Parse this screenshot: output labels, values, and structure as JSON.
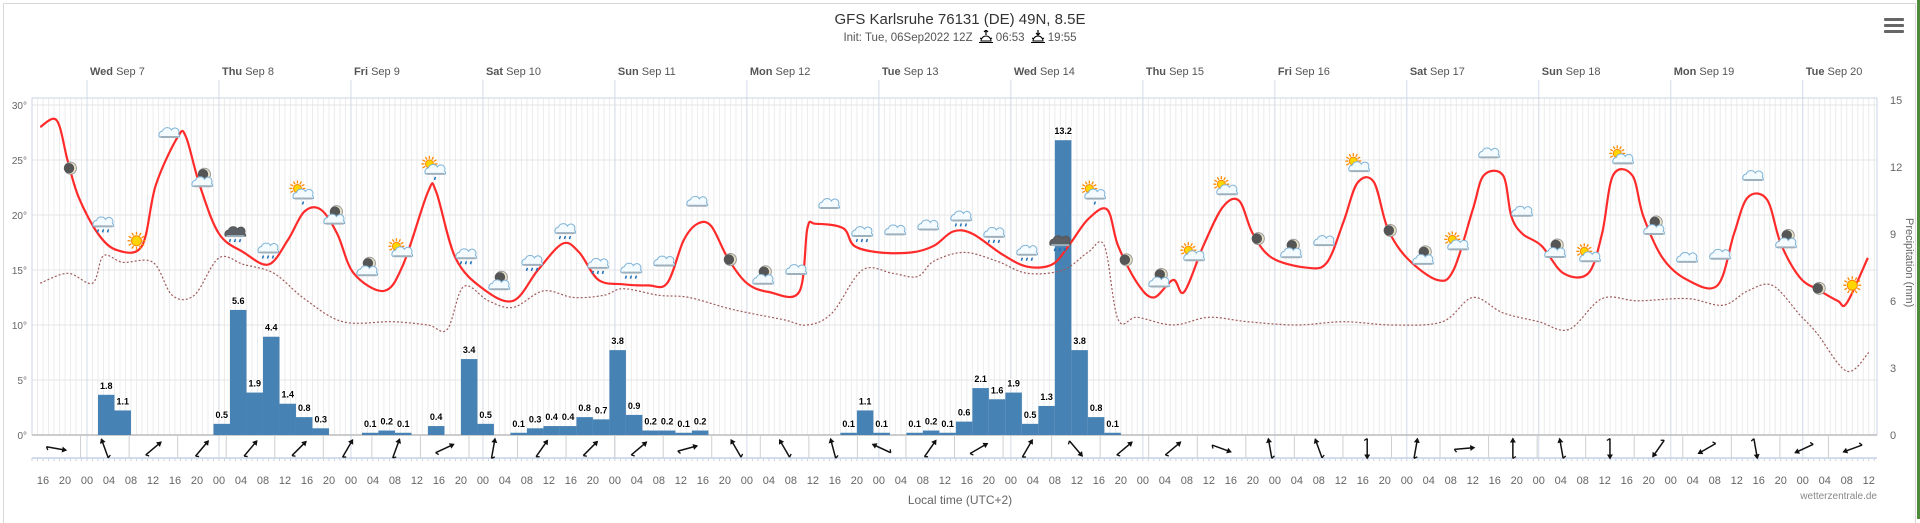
{
  "header": {
    "title": "GFS Karlsruhe 76131 (DE) 49N, 8.5E",
    "init": "Init: Tue, 06Sep2022 12Z",
    "sunrise": "06:53",
    "sunset": "19:55",
    "menu_icon": "hamburger-menu-icon"
  },
  "credit": "wetterzentrale.de",
  "colors": {
    "temperature": "#ff2b2b",
    "dewpoint": "#a05a5a",
    "precipitation": "#4682b4",
    "frame_accent": "#4f8a3a"
  },
  "chart_data": {
    "type": "line+bar",
    "xlabel": "Local time (UTC+2)",
    "xlim": [
      "2022-09-06 14:00",
      "2022-09-20 13:30"
    ],
    "day_labels": [
      {
        "day": "Wed",
        "date": "Sep 7"
      },
      {
        "day": "Thu",
        "date": "Sep 8"
      },
      {
        "day": "Fri",
        "date": "Sep 9"
      },
      {
        "day": "Sat",
        "date": "Sep 10"
      },
      {
        "day": "Sun",
        "date": "Sep 11"
      },
      {
        "day": "Mon",
        "date": "Sep 12"
      },
      {
        "day": "Tue",
        "date": "Sep 13"
      },
      {
        "day": "Wed",
        "date": "Sep 14"
      },
      {
        "day": "Thu",
        "date": "Sep 15"
      },
      {
        "day": "Fri",
        "date": "Sep 16"
      },
      {
        "day": "Sat",
        "date": "Sep 17"
      },
      {
        "day": "Sun",
        "date": "Sep 18"
      },
      {
        "day": "Mon",
        "date": "Sep 19"
      },
      {
        "day": "Tue",
        "date": "Sep 20"
      }
    ],
    "hour_tick_interval_h": 4,
    "y_left": {
      "ticks": [
        "0°",
        "5°",
        "10°",
        "15°",
        "20°",
        "25°",
        "30°"
      ],
      "ylim": [
        0,
        30
      ]
    },
    "y_right": {
      "label": "Precipitation (mm)",
      "ticks": [
        "0",
        "3",
        "6",
        "9",
        "12",
        "15"
      ],
      "ylim": [
        0,
        15
      ]
    },
    "grid": true,
    "series": [
      {
        "kind": "line",
        "color": "#ff2b2b",
        "style": "solid",
        "points": [
          [
            "09-06 15:30",
            28.0
          ],
          [
            "09-06 18:30",
            28.6
          ],
          [
            "09-06 20:30",
            24.9
          ],
          [
            "09-06 22:30",
            21.6
          ],
          [
            "09-07 02:00",
            18.3
          ],
          [
            "09-07 05:30",
            16.8
          ],
          [
            "09-07 10:00",
            17.2
          ],
          [
            "09-07 12:30",
            22.7
          ],
          [
            "09-07 16:30",
            27.1
          ],
          [
            "09-07 18:00",
            27.1
          ],
          [
            "09-07 20:30",
            22.7
          ],
          [
            "09-08 00:00",
            18.3
          ],
          [
            "09-08 04:30",
            16.6
          ],
          [
            "09-08 09:00",
            15.5
          ],
          [
            "09-08 12:30",
            17.7
          ],
          [
            "09-08 15:30",
            20.3
          ],
          [
            "09-08 18:30",
            20.5
          ],
          [
            "09-08 21:30",
            18.3
          ],
          [
            "09-09 00:30",
            14.7
          ],
          [
            "09-09 06:00",
            13.1
          ],
          [
            "09-09 09:30",
            15.5
          ],
          [
            "09-09 14:00",
            22.1
          ],
          [
            "09-09 15:30",
            22.1
          ],
          [
            "09-09 19:00",
            16.1
          ],
          [
            "09-10 00:00",
            13.3
          ],
          [
            "09-10 05:30",
            12.2
          ],
          [
            "09-10 10:00",
            15.0
          ],
          [
            "09-10 14:30",
            17.4
          ],
          [
            "09-10 17:30",
            16.6
          ],
          [
            "09-10 21:00",
            14.1
          ],
          [
            "09-11 01:30",
            13.7
          ],
          [
            "09-11 06:00",
            13.6
          ],
          [
            "09-11 09:30",
            13.8
          ],
          [
            "09-11 12:30",
            17.7
          ],
          [
            "09-11 15:00",
            19.2
          ],
          [
            "09-11 17:30",
            19.0
          ],
          [
            "09-11 20:30",
            16.1
          ],
          [
            "09-12 00:00",
            13.8
          ],
          [
            "09-12 04:00",
            13.0
          ],
          [
            "09-12 09:30",
            13.0
          ],
          [
            "09-12 11:00",
            18.8
          ],
          [
            "09-12 12:30",
            19.2
          ],
          [
            "09-12 17:30",
            18.8
          ],
          [
            "09-12 19:30",
            17.2
          ],
          [
            "09-13 00:00",
            16.6
          ],
          [
            "09-13 06:00",
            16.6
          ],
          [
            "09-13 10:00",
            17.2
          ],
          [
            "09-13 13:30",
            18.5
          ],
          [
            "09-13 17:00",
            18.3
          ],
          [
            "09-13 22:30",
            16.4
          ],
          [
            "09-14 03:00",
            15.3
          ],
          [
            "09-14 07:30",
            15.5
          ],
          [
            "09-14 10:30",
            17.2
          ],
          [
            "09-14 14:00",
            19.6
          ],
          [
            "09-14 17:30",
            20.5
          ],
          [
            "09-14 19:30",
            17.2
          ],
          [
            "09-14 23:00",
            13.8
          ],
          [
            "09-15 02:00",
            12.5
          ],
          [
            "09-15 05:30",
            14.1
          ],
          [
            "09-15 07:30",
            13.0
          ],
          [
            "09-15 11:00",
            17.2
          ],
          [
            "09-15 14:30",
            20.7
          ],
          [
            "09-15 17:30",
            21.3
          ],
          [
            "09-15 20:00",
            18.3
          ],
          [
            "09-15 23:30",
            16.1
          ],
          [
            "09-16 06:00",
            15.2
          ],
          [
            "09-16 09:30",
            15.7
          ],
          [
            "09-16 12:30",
            19.4
          ],
          [
            "09-16 15:00",
            22.9
          ],
          [
            "09-16 18:00",
            23.0
          ],
          [
            "09-16 20:30",
            18.8
          ],
          [
            "09-17 00:00",
            16.1
          ],
          [
            "09-17 05:30",
            14.1
          ],
          [
            "09-17 08:30",
            15.0
          ],
          [
            "09-17 12:00",
            20.5
          ],
          [
            "09-17 14:00",
            23.6
          ],
          [
            "09-17 17:30",
            23.6
          ],
          [
            "09-17 19:00",
            19.9
          ],
          [
            "09-17 21:00",
            18.3
          ],
          [
            "09-18 00:30",
            17.2
          ],
          [
            "09-18 04:30",
            14.7
          ],
          [
            "09-18 09:00",
            14.7
          ],
          [
            "09-18 11:30",
            18.3
          ],
          [
            "09-18 13:30",
            23.6
          ],
          [
            "09-18 17:00",
            23.6
          ],
          [
            "09-18 19:00",
            19.9
          ],
          [
            "09-18 22:30",
            16.1
          ],
          [
            "09-19 03:00",
            14.1
          ],
          [
            "09-19 08:30",
            13.6
          ],
          [
            "09-19 11:30",
            18.3
          ],
          [
            "09-19 14:00",
            21.6
          ],
          [
            "09-19 17:30",
            21.4
          ],
          [
            "09-19 20:00",
            17.4
          ],
          [
            "09-19 23:30",
            14.3
          ],
          [
            "09-20 02:50",
            13.2
          ],
          [
            "09-20 06:20",
            12.2
          ],
          [
            "09-20 08:00",
            12.0
          ],
          [
            "09-20 11:50",
            16.1
          ]
        ]
      },
      {
        "kind": "line",
        "color": "#a05a5a",
        "style": "dotted",
        "points": [
          [
            "09-06 15:30",
            13.8
          ],
          [
            "09-06 20:30",
            14.7
          ],
          [
            "09-07 01:00",
            13.8
          ],
          [
            "09-07 03:00",
            16.3
          ],
          [
            "09-07 06:30",
            15.7
          ],
          [
            "09-07 12:00",
            15.7
          ],
          [
            "09-07 15:30",
            12.7
          ],
          [
            "09-07 19:30",
            12.7
          ],
          [
            "09-08 00:00",
            16.1
          ],
          [
            "09-08 04:30",
            15.5
          ],
          [
            "09-08 10:00",
            14.7
          ],
          [
            "09-08 15:30",
            12.4
          ],
          [
            "09-08 22:30",
            10.3
          ],
          [
            "09-09 07:30",
            10.3
          ],
          [
            "09-09 14:00",
            10.0
          ],
          [
            "09-09 17:30",
            9.6
          ],
          [
            "09-09 20:30",
            13.5
          ],
          [
            "09-10 01:00",
            12.2
          ],
          [
            "09-10 05:30",
            11.6
          ],
          [
            "09-10 11:00",
            13.1
          ],
          [
            "09-10 16:30",
            12.5
          ],
          [
            "09-10 22:00",
            12.7
          ],
          [
            "09-11 01:30",
            13.3
          ],
          [
            "09-11 08:00",
            12.7
          ],
          [
            "09-11 13:30",
            12.5
          ],
          [
            "09-11 21:30",
            11.4
          ],
          [
            "09-12 06:30",
            10.5
          ],
          [
            "09-12 11:00",
            10.0
          ],
          [
            "09-12 15:30",
            11.1
          ],
          [
            "09-12 21:00",
            15.0
          ],
          [
            "09-13 02:30",
            14.7
          ],
          [
            "09-13 07:00",
            14.4
          ],
          [
            "09-13 10:00",
            15.8
          ],
          [
            "09-13 15:30",
            16.6
          ],
          [
            "09-13 21:30",
            15.8
          ],
          [
            "09-14 03:00",
            14.7
          ],
          [
            "09-14 09:30",
            15.0
          ],
          [
            "09-14 14:00",
            16.6
          ],
          [
            "09-14 17:00",
            17.2
          ],
          [
            "09-14 19:30",
            10.5
          ],
          [
            "09-14 23:00",
            10.7
          ],
          [
            "09-15 05:30",
            10.0
          ],
          [
            "09-15 12:00",
            10.7
          ],
          [
            "09-15 19:00",
            10.3
          ],
          [
            "09-16 04:00",
            10.0
          ],
          [
            "09-16 12:30",
            10.3
          ],
          [
            "09-16 21:30",
            10.0
          ],
          [
            "09-17 06:30",
            10.3
          ],
          [
            "09-17 12:00",
            12.5
          ],
          [
            "09-17 17:30",
            11.1
          ],
          [
            "09-18 00:00",
            10.3
          ],
          [
            "09-18 05:30",
            9.6
          ],
          [
            "09-18 11:30",
            12.4
          ],
          [
            "09-18 18:00",
            12.2
          ],
          [
            "09-19 03:00",
            12.4
          ],
          [
            "09-19 09:30",
            11.8
          ],
          [
            "09-19 14:00",
            13.1
          ],
          [
            "09-19 18:30",
            13.6
          ],
          [
            "09-19 23:30",
            10.9
          ],
          [
            "09-20 02:30",
            9.3
          ],
          [
            "09-20 08:00",
            5.8
          ],
          [
            "09-20 12:00",
            7.5
          ]
        ]
      },
      {
        "kind": "bar",
        "axis": "right",
        "color": "#4682b4",
        "bar_hours": 3,
        "values": [
          [
            "09-07 02:00",
            1.8
          ],
          [
            "09-07 05:00",
            1.1
          ],
          [
            "09-07 23:00",
            0.5
          ],
          [
            "09-08 02:00",
            5.6
          ],
          [
            "09-08 05:00",
            1.9
          ],
          [
            "09-08 08:00",
            4.4
          ],
          [
            "09-08 11:00",
            1.4
          ],
          [
            "09-08 14:00",
            0.8
          ],
          [
            "09-08 17:00",
            0.3
          ],
          [
            "09-09 02:00",
            0.1
          ],
          [
            "09-09 05:00",
            0.2
          ],
          [
            "09-09 08:00",
            0.1
          ],
          [
            "09-09 14:00",
            0.4
          ],
          [
            "09-09 20:00",
            3.4
          ],
          [
            "09-09 23:00",
            0.5
          ],
          [
            "09-10 05:00",
            0.1
          ],
          [
            "09-10 08:00",
            0.3
          ],
          [
            "09-10 11:00",
            0.4
          ],
          [
            "09-10 14:00",
            0.4
          ],
          [
            "09-10 17:00",
            0.8
          ],
          [
            "09-10 20:00",
            0.7
          ],
          [
            "09-10 23:00",
            3.8
          ],
          [
            "09-11 02:00",
            0.9
          ],
          [
            "09-11 05:00",
            0.2
          ],
          [
            "09-11 08:00",
            0.2
          ],
          [
            "09-11 11:00",
            0.1
          ],
          [
            "09-11 14:00",
            0.2
          ],
          [
            "09-12 17:00",
            0.1
          ],
          [
            "09-12 20:00",
            1.1
          ],
          [
            "09-12 23:00",
            0.1
          ],
          [
            "09-13 05:00",
            0.1
          ],
          [
            "09-13 08:00",
            0.2
          ],
          [
            "09-13 11:00",
            0.1
          ],
          [
            "09-13 14:00",
            0.6
          ],
          [
            "09-13 17:00",
            2.1
          ],
          [
            "09-13 20:00",
            1.6
          ],
          [
            "09-13 23:00",
            1.9
          ],
          [
            "09-14 02:00",
            0.5
          ],
          [
            "09-14 05:00",
            1.3
          ],
          [
            "09-14 08:00",
            13.2
          ],
          [
            "09-14 11:00",
            3.8
          ],
          [
            "09-14 14:00",
            0.8
          ],
          [
            "09-14 17:00",
            0.1
          ]
        ]
      }
    ],
    "weather_icons": {
      "first": "09-06 21:00",
      "interval_h": 6,
      "types": [
        "moon",
        "rain-cloud",
        "sun",
        "cloud",
        "moon-cloud",
        "thunder-rain-cloud",
        "rain-cloud",
        "sun-cloud-rain",
        "moon-cloud",
        "moon-cloud",
        "sun-cloud",
        "sun-cloud-rain",
        "rain-cloud",
        "moon-cloud",
        "rain-cloud",
        "rain-cloud",
        "rain-cloud",
        "rain-cloud",
        "cloud",
        "cloud",
        "moon",
        "moon-cloud",
        "cloud",
        "cloud",
        "rain-cloud",
        "cloud",
        "cloud",
        "rain-cloud",
        "rain-cloud",
        "rain-cloud",
        "thunder-rain-cloud",
        "sun-cloud-rain",
        "moon",
        "moon-cloud",
        "sun-cloud",
        "sun-cloud",
        "moon",
        "moon-cloud",
        "cloud",
        "sun-cloud",
        "moon",
        "moon-cloud",
        "sun-cloud",
        "cloud",
        "cloud",
        "moon-cloud",
        "sun-cloud",
        "sun-cloud",
        "moon-cloud",
        "cloud",
        "cloud",
        "cloud",
        "moon-cloud",
        "moon",
        "sun"
      ]
    },
    "wind_arrow_directions_deg": [
      100,
      340,
      50,
      40,
      40,
      45,
      30,
      20,
      65,
      10,
      35,
      45,
      50,
      75,
      330,
      330,
      345,
      295,
      35,
      60,
      30,
      140,
      50,
      50,
      110,
      350,
      340,
      180,
      10,
      85,
      0,
      350,
      180,
      215,
      240,
      170,
      245,
      250
    ]
  }
}
